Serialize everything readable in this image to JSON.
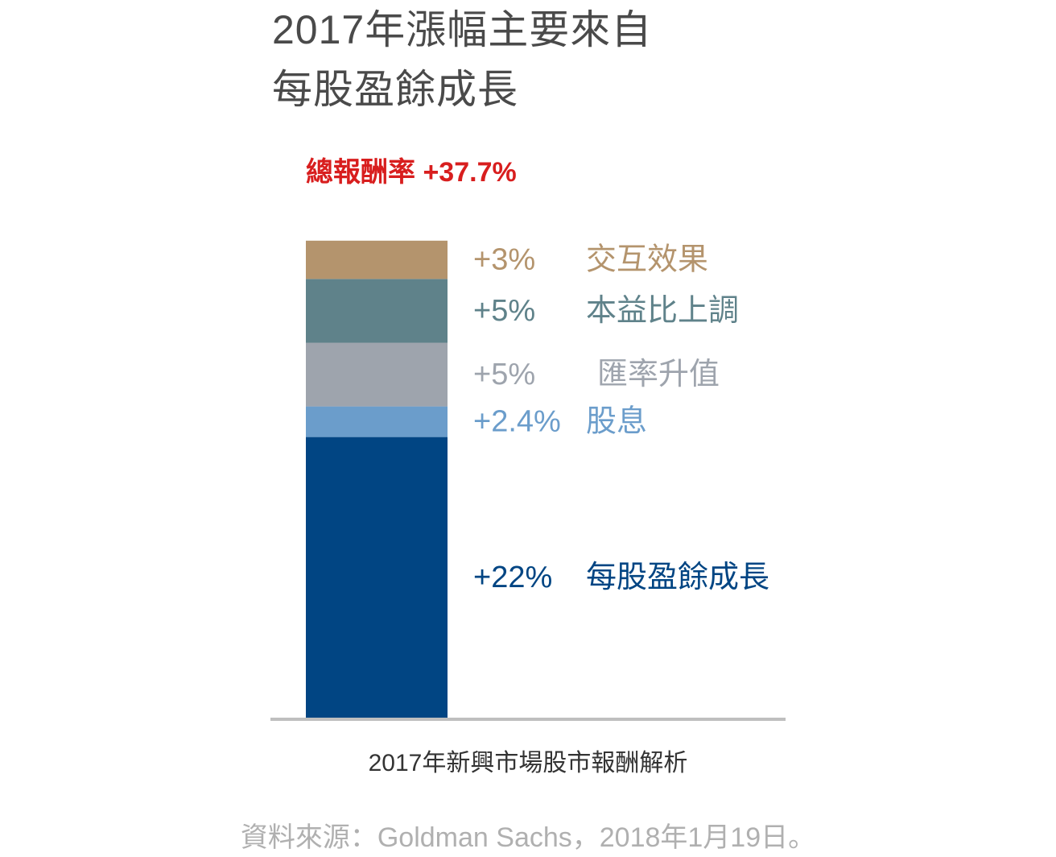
{
  "title_lines": [
    "2017年漲幅主要來自",
    "每股盈餘成長"
  ],
  "total": {
    "label": "總報酬率",
    "value_text": "+37.7%",
    "color": "#d81e1e"
  },
  "chart_data": {
    "type": "bar",
    "stacked": true,
    "title": "2017年漲幅主要來自每股盈餘成長",
    "xlabel": "2017年新興市場股市報酬解析",
    "ylabel": "",
    "ylim": [
      0,
      37.7
    ],
    "grid": false,
    "legend": "right",
    "categories": [
      "2017年新興市場股市報酬解析"
    ],
    "series": [
      {
        "name": "每股盈餘成長",
        "values": [
          22
        ],
        "label": "+22%",
        "color": "#014583"
      },
      {
        "name": "股息",
        "values": [
          2.4
        ],
        "label": "+2.4%",
        "color": "#6b9dcb"
      },
      {
        "name": "匯率升值",
        "values": [
          5
        ],
        "label": "+5%",
        "color": "#9ea4ad"
      },
      {
        "name": "本益比上調",
        "values": [
          5
        ],
        "label": "+5%",
        "color": "#5f828a"
      },
      {
        "name": "交互效果",
        "values": [
          3
        ],
        "label": "+3%",
        "color": "#b4946d"
      }
    ],
    "total": 37.7
  },
  "source": "資料來源：Goldman Sachs，2018年1月19日。",
  "colors": {
    "title": "#4a4a4a",
    "axis": "#bfbfbf",
    "xlabel": "#333333",
    "source": "#b0b0b0"
  }
}
